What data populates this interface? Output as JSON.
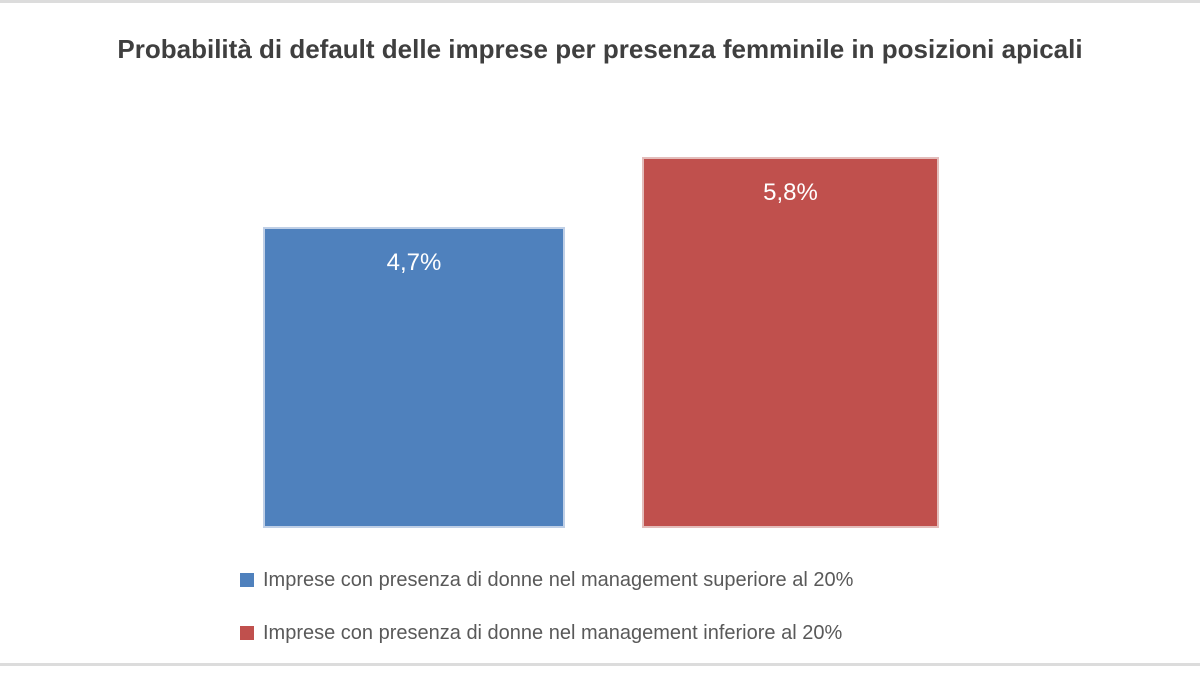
{
  "chart_data": {
    "type": "bar",
    "title": "Probabilità di default delle imprese per presenza femminile in posizioni apicali",
    "categories": [
      "Imprese con presenza di donne nel management superiore al 20%",
      "Imprese con presenza di donne nel management inferiore al 20%"
    ],
    "values": [
      4.7,
      5.8
    ],
    "data_labels": [
      "4,7%",
      "5,8%"
    ],
    "bar_colors": [
      "#4F81BD",
      "#C0504D"
    ],
    "bar_border_colors": [
      "#BFCFE6",
      "#E3BDBB"
    ],
    "xlabel": "",
    "ylabel": "",
    "ylim": [
      0,
      5.8
    ],
    "grid": false,
    "axes_visible": false,
    "legend_position": "bottom",
    "data_label_position": "inside-top",
    "colors": {
      "title_text": "#3F3F3F",
      "legend_text": "#595959",
      "data_label_text": "#FFFFFF",
      "background": "#FFFFFF",
      "frame_line": "#DCDCDC"
    }
  }
}
